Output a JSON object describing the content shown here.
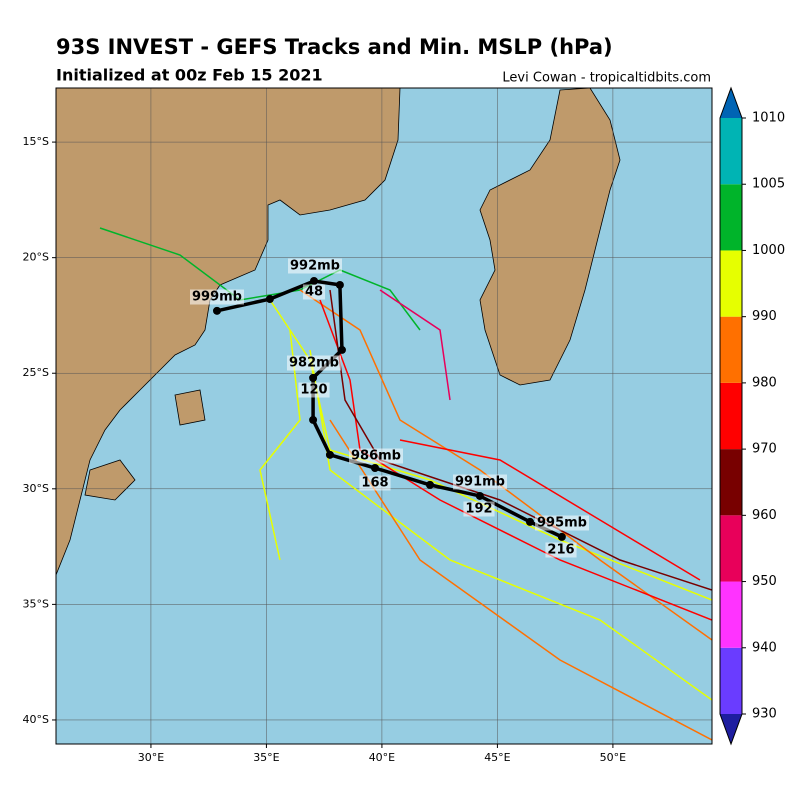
{
  "header": {
    "title": "93S INVEST - GEFS Tracks and Min. MSLP (hPa)",
    "subtitle": "Initialized at 00z Feb 15 2021",
    "credit": "Levi Cowan - tropicaltidbits.com"
  },
  "map": {
    "xlim": [
      25.89,
      54.29
    ],
    "ylim": [
      -41.04,
      -12.66
    ],
    "xticks": [
      {
        "value": 30,
        "label": "30°E"
      },
      {
        "value": 35,
        "label": "35°E"
      },
      {
        "value": 40,
        "label": "40°E"
      },
      {
        "value": 45,
        "label": "45°E"
      },
      {
        "value": 50,
        "label": "50°E"
      }
    ],
    "yticks": [
      {
        "value": -15,
        "label": "15°S"
      },
      {
        "value": -20,
        "label": "20°S"
      },
      {
        "value": -25,
        "label": "25°S"
      },
      {
        "value": -30,
        "label": "30°S"
      },
      {
        "value": -35,
        "label": "35°S"
      },
      {
        "value": -40,
        "label": "40°S"
      }
    ],
    "mean_track": {
      "lon": [
        32.86,
        35.15,
        37.06,
        38.18,
        38.27,
        37.02,
        37.02,
        37.75,
        39.7,
        42.08,
        44.24,
        46.41,
        47.79
      ],
      "lat": [
        -22.3,
        -21.79,
        -21.01,
        -21.18,
        -23.99,
        -25.2,
        -27.02,
        -28.53,
        -29.1,
        -29.83,
        -30.31,
        -31.43,
        -32.08
      ]
    },
    "annotations": [
      "992mb",
      "48",
      "999mb",
      "982mb",
      "120",
      "986mb",
      "168",
      "991mb",
      "192",
      "995mb",
      "216"
    ]
  },
  "colorbar": {
    "ticks": [
      930,
      940,
      950,
      960,
      970,
      980,
      990,
      1000,
      1005,
      1010
    ],
    "colors": [
      "#6a3cff",
      "#ff33ff",
      "#e8005a",
      "#780000",
      "#ff0000",
      "#ff7000",
      "#e6ff00",
      "#00b42a",
      "#00b4b4"
    ],
    "under_color": "#1e1ea0",
    "over_color": "#0064b4"
  }
}
